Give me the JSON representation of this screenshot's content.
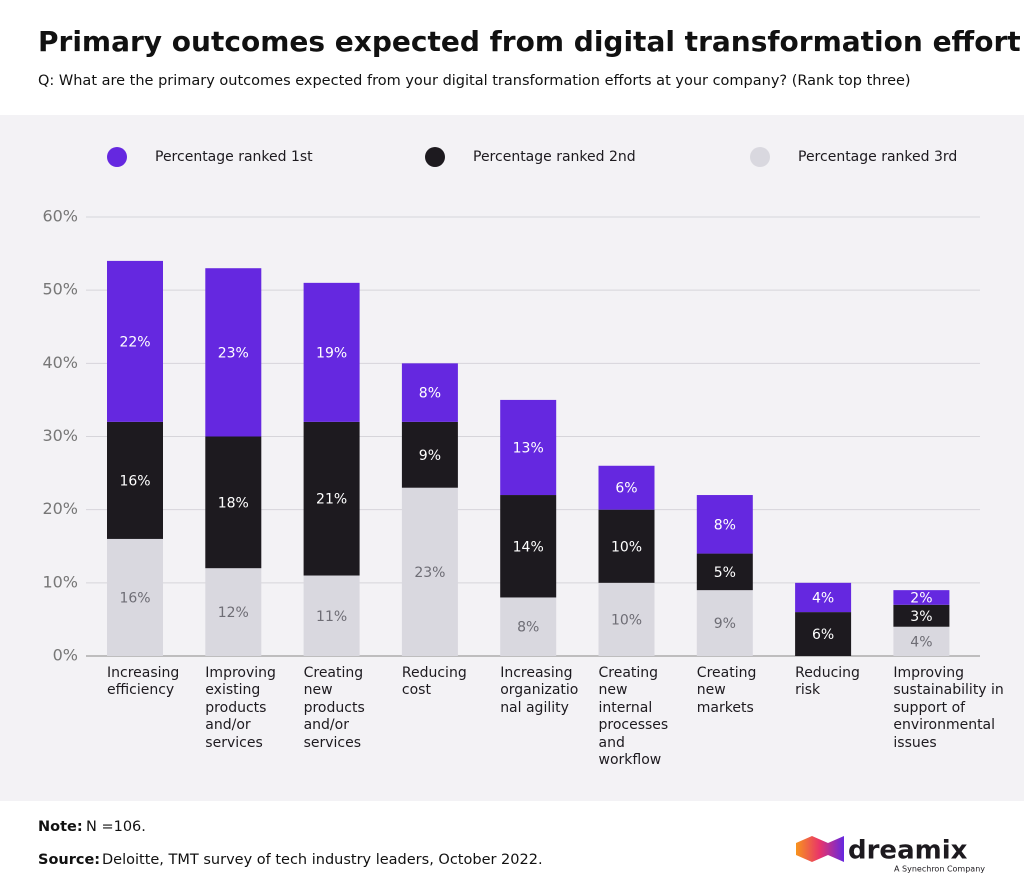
{
  "chart_data": {
    "type": "stacked_bar",
    "title": "Primary outcomes expected from digital transformation effort",
    "subtitle": "Q: What are the primary outcomes expected from your digital transformation efforts at your company? (Rank top three)",
    "categories": [
      "Increasing efficiency",
      "Improving existing products and/or services",
      "Creating new products and/or services",
      "Reducing cost",
      "Increasing organizational agility",
      "Creating new internal processes and workflow",
      "Creating new markets",
      "Reducing risk",
      "Improving sustainability in support of environmental issues"
    ],
    "series": [
      {
        "name": "Percentage ranked 1st",
        "color": "#6528e0",
        "values": [
          22,
          23,
          19,
          8,
          13,
          6,
          8,
          4,
          2
        ],
        "value_labels": [
          "22%",
          "23%",
          "19%",
          "8%",
          "13%",
          "6%",
          "8%",
          "4%",
          "2%"
        ]
      },
      {
        "name": "Percentage ranked 2nd",
        "color": "#1d1a1f",
        "values": [
          16,
          18,
          21,
          9,
          14,
          10,
          5,
          6,
          3
        ],
        "value_labels": [
          "16%",
          "18%",
          "21%",
          "9%",
          "14%",
          "10%",
          "5%",
          "6%",
          "3%"
        ]
      },
      {
        "name": "Percentage ranked 3rd",
        "color": "#d9d8df",
        "values": [
          16,
          12,
          11,
          23,
          8,
          10,
          9,
          null,
          4
        ],
        "value_labels": [
          "16%",
          "12%",
          "11%",
          "23%",
          "8%",
          "10%",
          "9%",
          null,
          "4%"
        ]
      }
    ],
    "ylim": [
      0,
      60
    ],
    "yticks": [
      {
        "value": 0,
        "label": "0%"
      },
      {
        "value": 10,
        "label": "10%"
      },
      {
        "value": 20,
        "label": "20%"
      },
      {
        "value": 30,
        "label": "30%"
      },
      {
        "value": 40,
        "label": "40%"
      },
      {
        "value": 50,
        "label": "50%"
      },
      {
        "value": 60,
        "label": "60%"
      }
    ],
    "grid": true,
    "legend": "top"
  },
  "footer": {
    "note_label": "Note:",
    "note_text": "N =106.",
    "source_label": "Source:",
    "source_text": "Deloitte, TMT survey of tech industry leaders, October 2022."
  },
  "logo": {
    "name": "dreamix",
    "tagline": "A Synechron Company"
  }
}
